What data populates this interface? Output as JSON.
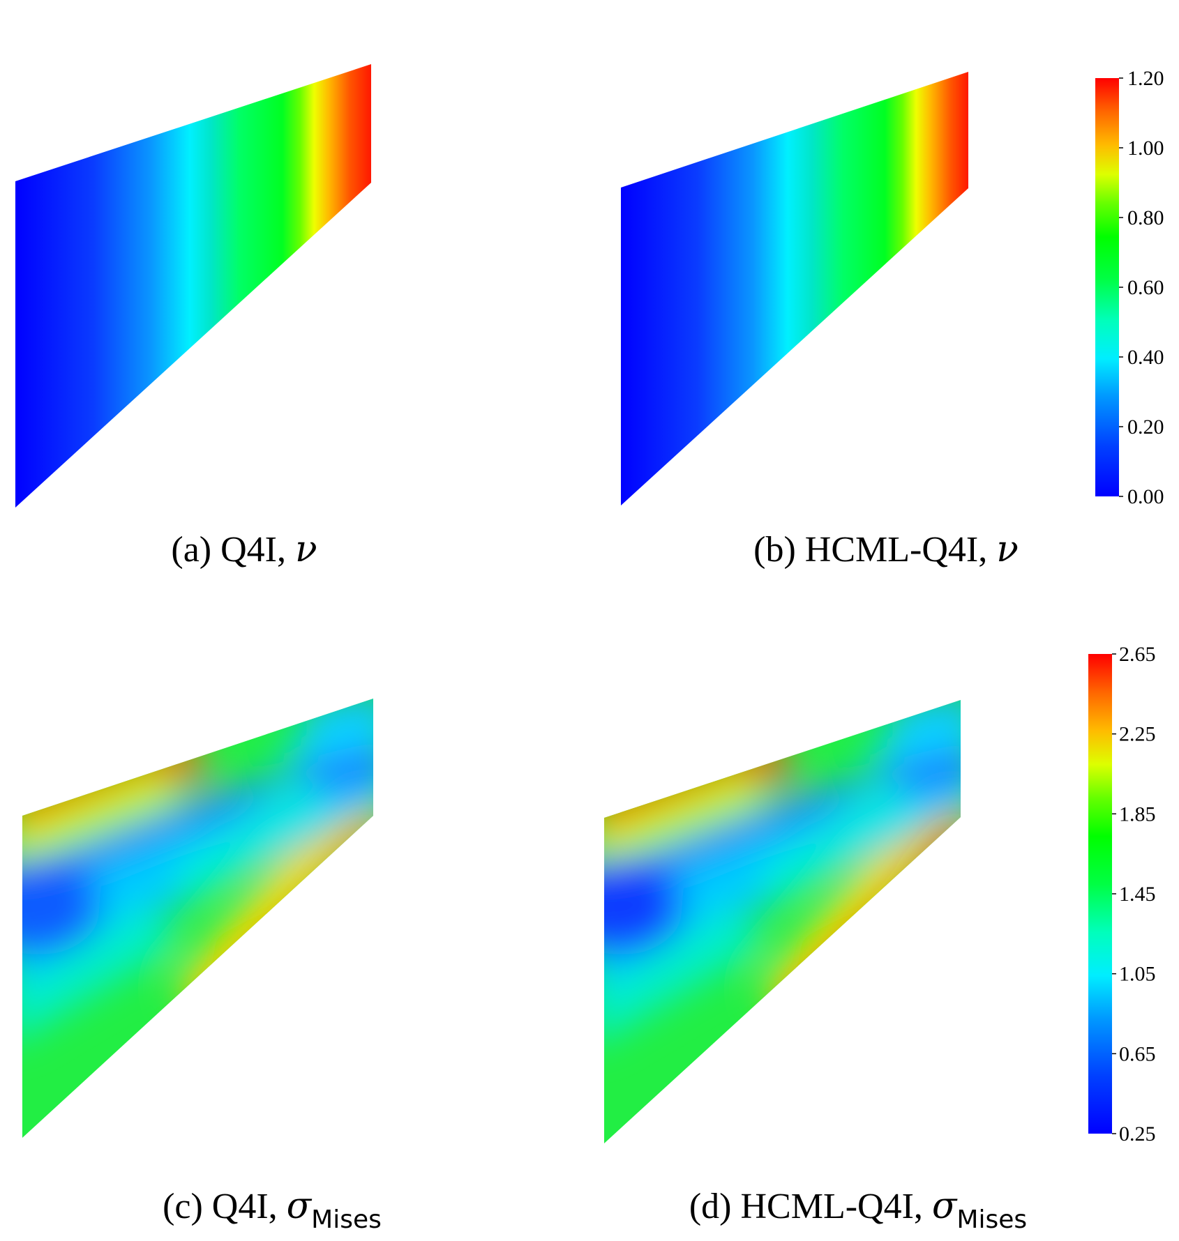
{
  "panels": [
    {
      "id": "a",
      "caption_prefix": "(a) Q4I, ",
      "caption_symbol": "ν",
      "caption_sub": "",
      "field": "nu"
    },
    {
      "id": "b",
      "caption_prefix": "(b) HCML-Q4I, ",
      "caption_symbol": "ν",
      "caption_sub": "",
      "field": "nu"
    },
    {
      "id": "c",
      "caption_prefix": "(c) Q4I, ",
      "caption_symbol": "σ",
      "caption_sub": "Mises",
      "field": "mises"
    },
    {
      "id": "d",
      "caption_prefix": "(d) HCML-Q4I, ",
      "caption_symbol": "σ",
      "caption_sub": "Mises",
      "field": "mises"
    }
  ],
  "colorbars": [
    {
      "id": "nu",
      "min": 0.0,
      "max": 1.2,
      "tick_labels": [
        "1.20",
        "1.00",
        "0.80",
        "0.60",
        "0.40",
        "0.20",
        "0.00"
      ]
    },
    {
      "id": "mises",
      "min": 0.25,
      "max": 2.65,
      "tick_labels": [
        "2.65",
        "2.25",
        "1.85",
        "1.45",
        "1.05",
        "0.65",
        "0.25"
      ]
    }
  ],
  "colormap": [
    "#0000ff",
    "#0066ff",
    "#00ccff",
    "#00ffcc",
    "#00ff33",
    "#33ff00",
    "#ccff00",
    "#ffdd00",
    "#ff8800",
    "#ff0000"
  ]
}
